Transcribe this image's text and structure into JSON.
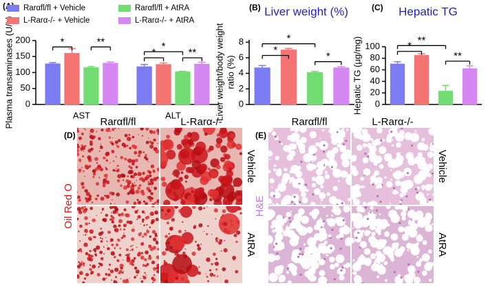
{
  "chart_data": [
    {
      "type": "bar",
      "panel_label": "(A)",
      "ylabel": "Plasma transaminases (U/L)",
      "categories": [
        "AST",
        "ALT"
      ],
      "series": [
        {
          "name": "Rarαfl/fl + Vehicle",
          "color": "#7b7bf2",
          "values": [
            127,
            118
          ],
          "errors": [
            4,
            7
          ]
        },
        {
          "name": "L-Rarα-/- + Vehicle",
          "color": "#f47474",
          "values": [
            160,
            125
          ],
          "errors": [
            15,
            5
          ]
        },
        {
          "name": "Rarαfl/fl + AtRA",
          "color": "#72dc72",
          "values": [
            115,
            102
          ],
          "errors": [
            4,
            2
          ]
        },
        {
          "name": "L-Rarα-/- + AtRA",
          "color": "#d587f2",
          "values": [
            129,
            126
          ],
          "errors": [
            4,
            6
          ]
        }
      ],
      "ylim": [
        0,
        200
      ],
      "yticks": [
        0,
        50,
        100,
        150,
        200
      ],
      "annotations": [
        "*",
        "**",
        "*",
        "*",
        "**"
      ]
    },
    {
      "type": "bar",
      "panel_label": "(B)",
      "title": "Liver weight (%)",
      "ylabel": [
        "Liver weight/body weight",
        "ratio (%)"
      ],
      "values": [
        4.7,
        7.0,
        4.1,
        4.7
      ],
      "errors": [
        0.3,
        0.2,
        0.15,
        0.15
      ],
      "colors": [
        "#7b7bf2",
        "#f47474",
        "#72dc72",
        "#d587f2"
      ],
      "ylim": [
        0,
        8.3
      ],
      "yticks": [
        0,
        2,
        4,
        6,
        8
      ],
      "annotations": [
        "*",
        "*",
        "*"
      ]
    },
    {
      "type": "bar",
      "panel_label": "(C)",
      "title": "Hepatic TG",
      "ylabel": "Hepatic TG (µg/mg)",
      "values": [
        70,
        85,
        23,
        62
      ],
      "errors": [
        4,
        3,
        10,
        5
      ],
      "colors": [
        "#7b7bf2",
        "#f47474",
        "#72dc72",
        "#d587f2"
      ],
      "ylim": [
        0,
        100
      ],
      "yticks": [
        0,
        20,
        40,
        60,
        80,
        100
      ],
      "annotations": [
        "*",
        "**",
        "**"
      ]
    }
  ],
  "panels": [
    {
      "label": "(D)",
      "stain": "Oil Red O",
      "columns": [
        "Rarαfl/fl",
        "L-Rarα-/-"
      ],
      "rows": [
        "Vehicle",
        "AtRA"
      ]
    },
    {
      "label": "(E)",
      "stain": "H&E",
      "columns": [
        "Rarαfl/fl",
        "L-Rarα-/-"
      ],
      "rows": [
        "Vehicle",
        "AtRA"
      ]
    }
  ]
}
